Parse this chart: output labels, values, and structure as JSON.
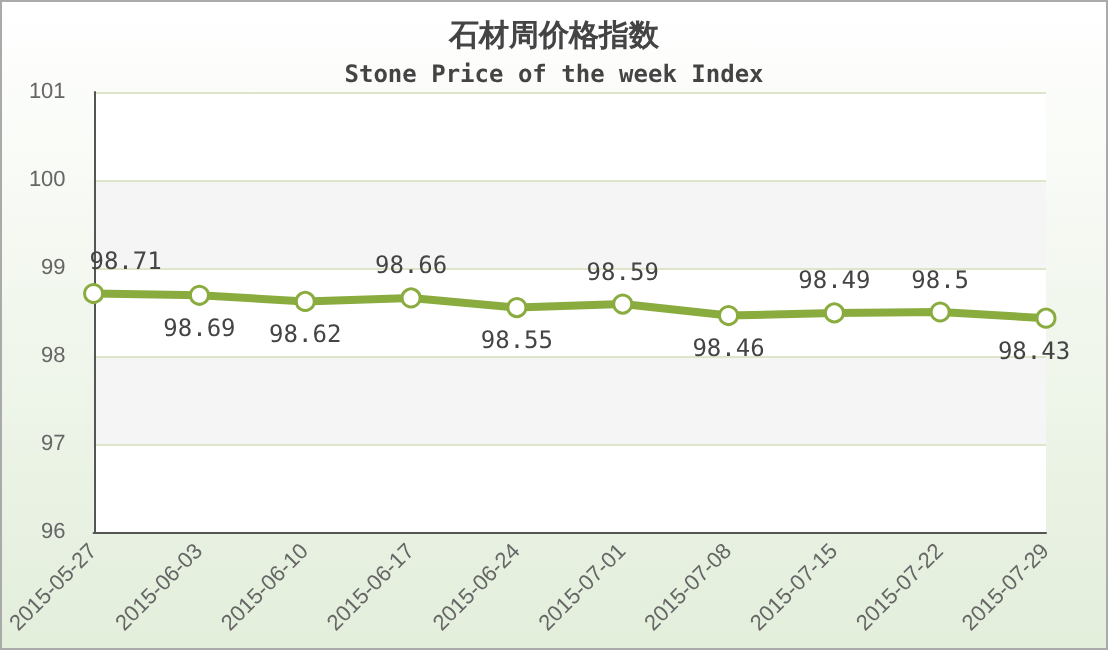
{
  "chart_data": {
    "type": "line",
    "title": "石材周价格指数",
    "subtitle": "Stone Price of the week Index",
    "categories": [
      "2015-05-27",
      "2015-06-03",
      "2015-06-10",
      "2015-06-17",
      "2015-06-24",
      "2015-07-01",
      "2015-07-08",
      "2015-07-15",
      "2015-07-22",
      "2015-07-29"
    ],
    "series": [
      {
        "color": "#8aac3f",
        "values": [
          98.71,
          98.69,
          98.62,
          98.66,
          98.55,
          98.59,
          98.46,
          98.49,
          98.5,
          98.43
        ]
      }
    ],
    "ylim": [
      96,
      101
    ],
    "yticks": [
      96,
      97,
      98,
      99,
      100,
      101
    ],
    "grid": "y",
    "marker": "circle",
    "line_style": "solid",
    "data_labels": true
  }
}
